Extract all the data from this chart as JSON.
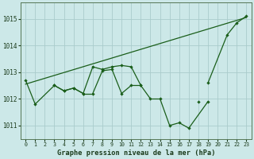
{
  "xlabel": "Graphe pression niveau de la mer (hPa)",
  "background_color": "#cce8e8",
  "grid_color": "#aacccc",
  "line_color": "#1a5e1a",
  "xlim": [
    -0.5,
    23.5
  ],
  "ylim": [
    1010.5,
    1015.6
  ],
  "yticks": [
    1011,
    1012,
    1013,
    1014,
    1015
  ],
  "xticks": [
    0,
    1,
    2,
    3,
    4,
    5,
    6,
    7,
    8,
    9,
    10,
    11,
    12,
    13,
    14,
    15,
    16,
    17,
    18,
    19,
    20,
    21,
    22,
    23
  ],
  "series1_x": [
    0,
    1,
    3,
    4,
    5,
    6,
    7,
    8,
    9,
    10,
    11,
    12,
    19,
    21,
    22,
    23
  ],
  "series1_y": [
    1012.7,
    1011.8,
    1012.5,
    1012.3,
    1012.4,
    1012.2,
    1013.2,
    1013.1,
    1013.2,
    1013.25,
    1013.2,
    1012.5,
    1012.6,
    1014.4,
    1014.85,
    1015.1
  ],
  "series1_segments": [
    [
      0,
      1
    ],
    [
      1,
      3
    ],
    [
      3,
      4
    ],
    [
      4,
      5
    ],
    [
      5,
      6
    ],
    [
      6,
      7
    ],
    [
      7,
      8
    ],
    [
      8,
      9
    ],
    [
      9,
      10
    ],
    [
      10,
      11
    ],
    [
      11,
      12
    ],
    [
      19,
      21
    ],
    [
      21,
      22
    ],
    [
      22,
      23
    ]
  ],
  "series2_x": [
    3,
    4,
    5,
    6,
    7,
    8,
    9,
    10,
    11,
    12,
    13,
    14,
    15,
    16,
    17,
    18,
    19
  ],
  "series2_y": [
    1012.5,
    1012.3,
    1012.4,
    1012.2,
    1012.2,
    1013.05,
    1013.1,
    1012.2,
    1012.5,
    1012.5,
    1012.0,
    1012.0,
    1011.0,
    1011.1,
    1010.9,
    1011.9,
    1011.9
  ],
  "series2_segments": [
    [
      3,
      4
    ],
    [
      4,
      5
    ],
    [
      5,
      6
    ],
    [
      6,
      7
    ],
    [
      7,
      8
    ],
    [
      8,
      9
    ],
    [
      9,
      10
    ],
    [
      10,
      11
    ],
    [
      11,
      12
    ],
    [
      12,
      13
    ],
    [
      13,
      14
    ],
    [
      14,
      15
    ],
    [
      15,
      16
    ],
    [
      16,
      17
    ],
    [
      17,
      19
    ]
  ],
  "trend_x": [
    0,
    23
  ],
  "trend_y": [
    1012.55,
    1015.05
  ]
}
